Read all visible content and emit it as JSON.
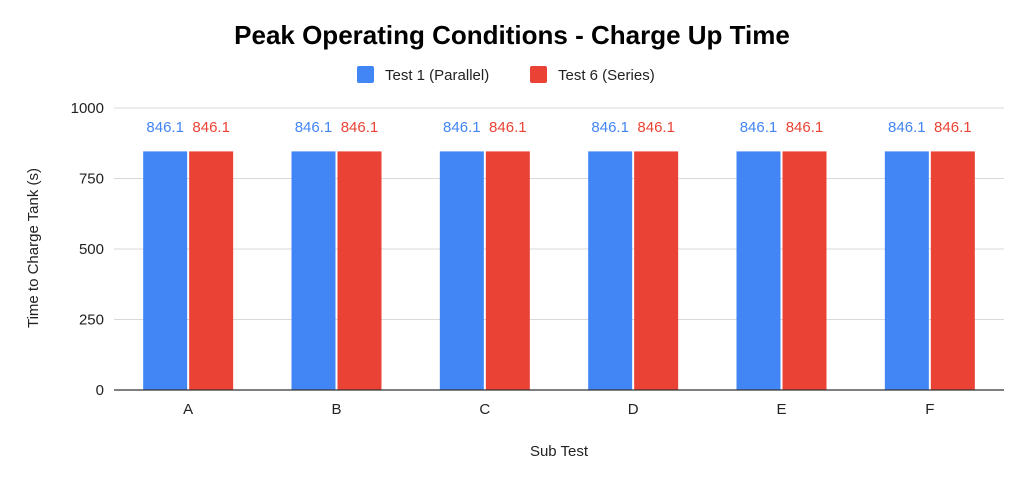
{
  "chart_data": {
    "type": "bar",
    "title": "Peak Operating Conditions - Charge Up Time",
    "xlabel": "Sub Test",
    "ylabel": "Time to Charge Tank (s)",
    "categories": [
      "A",
      "B",
      "C",
      "D",
      "E",
      "F"
    ],
    "series": [
      {
        "name": "Test 1 (Parallel)",
        "color": "#4285f4",
        "values": [
          846.1,
          846.1,
          846.1,
          846.1,
          846.1,
          846.1
        ]
      },
      {
        "name": "Test 6 (Series)",
        "color": "#ea4335",
        "values": [
          846.1,
          846.1,
          846.1,
          846.1,
          846.1,
          846.1
        ]
      }
    ],
    "ylim": [
      0,
      1000
    ],
    "yticks": [
      0,
      250,
      500,
      750,
      1000
    ],
    "grid": true,
    "legend": "top-center",
    "data_labels": true
  }
}
